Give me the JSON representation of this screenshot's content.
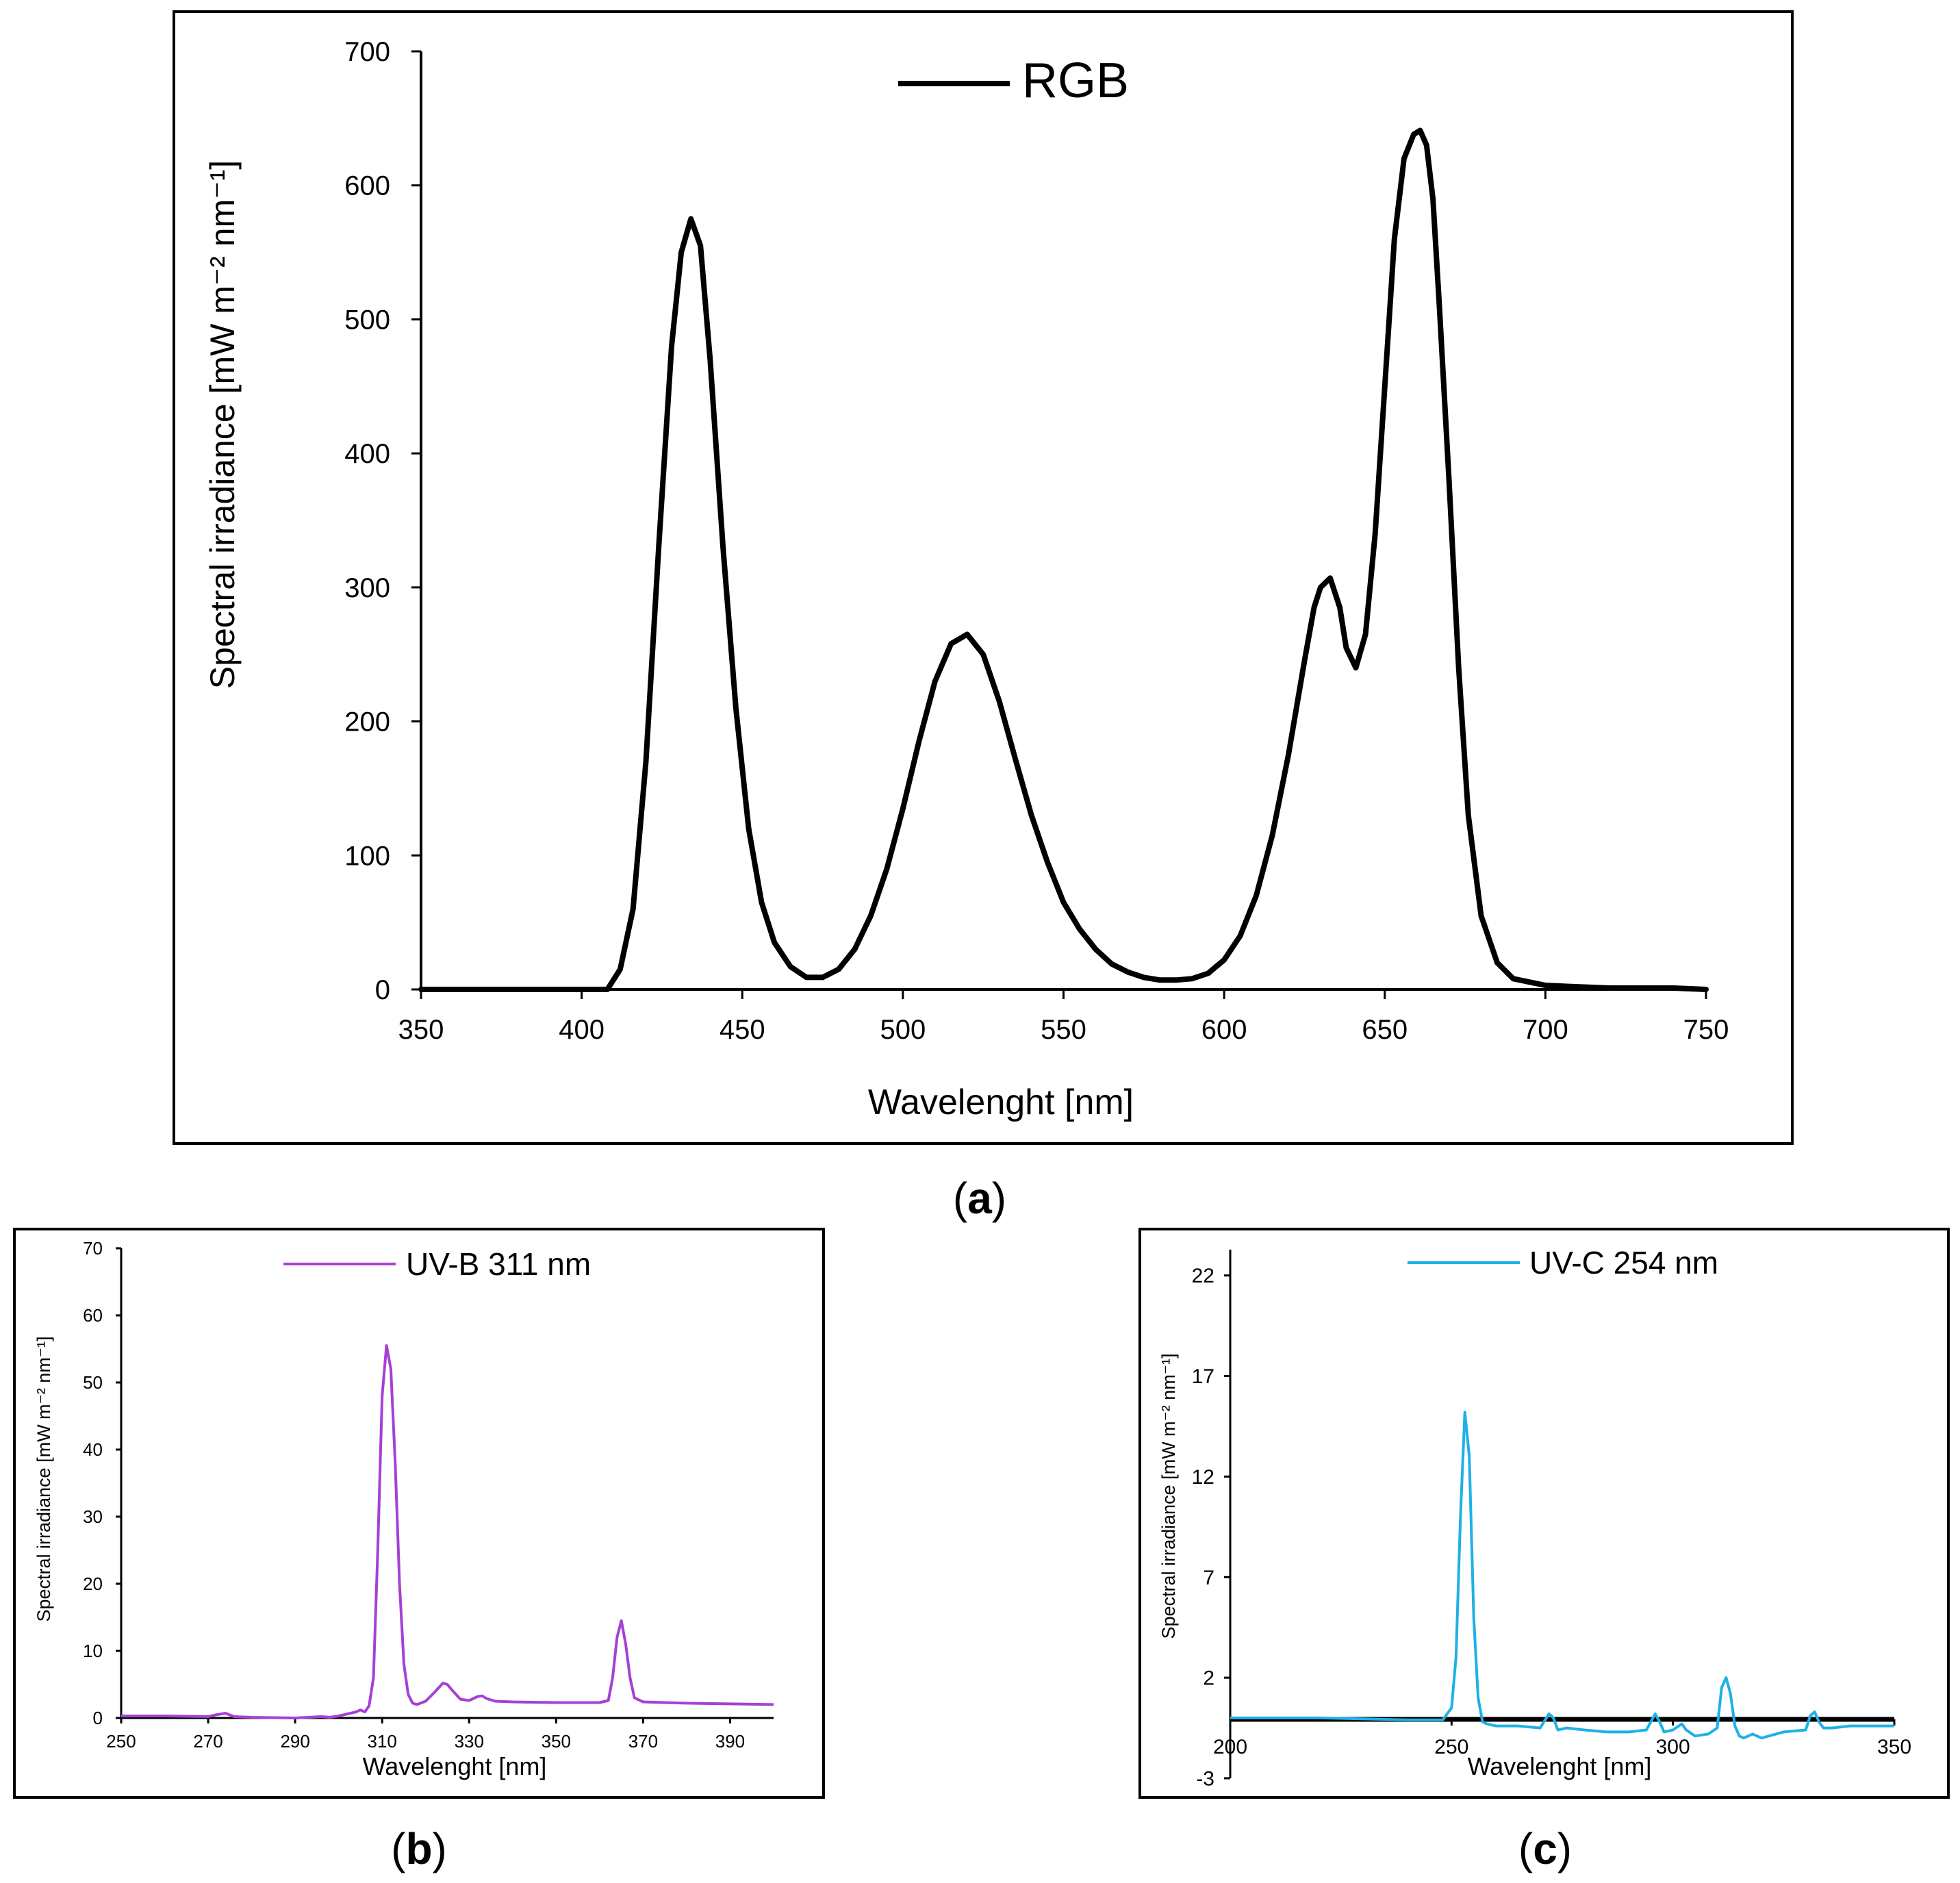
{
  "figure": {
    "panels": [
      {
        "caption_letter": "a"
      },
      {
        "caption_letter": "b"
      },
      {
        "caption_letter": "c"
      }
    ]
  },
  "chart_data": [
    {
      "type": "line",
      "panel": "a",
      "title": "",
      "xlabel": "Wavelenght [nm]",
      "ylabel": "Spectral irradiance [mW m⁻² nm⁻¹]",
      "xlim": [
        350,
        750
      ],
      "ylim": [
        0,
        700
      ],
      "xticks": [
        350,
        400,
        450,
        500,
        550,
        600,
        650,
        700,
        750
      ],
      "yticks": [
        0,
        100,
        200,
        300,
        400,
        500,
        600,
        700
      ],
      "legend": {
        "position": "top-center"
      },
      "grid": false,
      "series": [
        {
          "name": "RGB",
          "color": "#000000",
          "x": [
            350,
            400,
            405,
            408,
            412,
            416,
            420,
            424,
            428,
            431,
            434,
            437,
            440,
            444,
            448,
            452,
            456,
            460,
            465,
            470,
            475,
            480,
            485,
            490,
            495,
            500,
            505,
            510,
            515,
            520,
            525,
            530,
            535,
            540,
            545,
            550,
            555,
            560,
            565,
            570,
            575,
            580,
            585,
            590,
            595,
            600,
            605,
            610,
            615,
            620,
            625,
            628,
            630,
            633,
            636,
            638,
            641,
            644,
            647,
            650,
            653,
            656,
            659,
            661,
            663,
            665,
            667,
            670,
            673,
            676,
            680,
            685,
            690,
            700,
            710,
            720,
            730,
            740,
            750
          ],
          "values": [
            0,
            0,
            0,
            0,
            15,
            60,
            170,
            330,
            480,
            550,
            575,
            555,
            470,
            330,
            210,
            120,
            65,
            35,
            17,
            9,
            9,
            15,
            30,
            55,
            90,
            135,
            185,
            230,
            258,
            265,
            250,
            215,
            172,
            130,
            95,
            65,
            45,
            30,
            19,
            13,
            9,
            7,
            7,
            8,
            12,
            22,
            40,
            70,
            115,
            175,
            245,
            285,
            300,
            307,
            285,
            255,
            240,
            265,
            340,
            450,
            560,
            620,
            638,
            641,
            630,
            590,
            510,
            380,
            240,
            130,
            55,
            20,
            8,
            3,
            2,
            1,
            1,
            1,
            0
          ]
        }
      ]
    },
    {
      "type": "line",
      "panel": "b",
      "title": "",
      "xlabel": "Wavelenght [nm]",
      "ylabel": "Spectral irradiance [mW m⁻² nm⁻¹]",
      "xlim": [
        250,
        400
      ],
      "ylim": [
        0,
        70
      ],
      "xticks": [
        250,
        270,
        290,
        310,
        330,
        350,
        370,
        390
      ],
      "yticks": [
        0,
        10,
        20,
        30,
        40,
        50,
        60,
        70
      ],
      "legend": {
        "position": "top-center"
      },
      "grid": false,
      "series": [
        {
          "name": "UV-B 311 nm",
          "color": "#a640d6",
          "x": [
            250,
            260,
            270,
            272,
            274,
            276,
            280,
            290,
            296,
            298,
            300,
            302,
            304,
            305,
            306,
            307,
            308,
            309,
            310,
            311,
            312,
            313,
            314,
            315,
            316,
            317,
            318,
            320,
            322,
            324,
            325,
            326,
            328,
            330,
            332,
            333,
            334,
            336,
            340,
            350,
            355,
            360,
            362,
            363,
            364,
            365,
            366,
            367,
            368,
            370,
            375,
            380,
            390,
            400
          ],
          "values": [
            0.3,
            0.3,
            0.2,
            0.5,
            0.7,
            0.2,
            0.1,
            0.0,
            0.2,
            0.1,
            0.3,
            0.6,
            0.9,
            1.2,
            0.9,
            1.8,
            6,
            25,
            48,
            55.5,
            52,
            38,
            20,
            8,
            3.5,
            2.2,
            2.0,
            2.5,
            3.8,
            5.2,
            5.0,
            4.2,
            2.8,
            2.6,
            3.2,
            3.3,
            2.9,
            2.5,
            2.4,
            2.3,
            2.3,
            2.3,
            2.6,
            6,
            12,
            14.5,
            11,
            6,
            3,
            2.4,
            2.3,
            2.2,
            2.1,
            2.0
          ]
        }
      ]
    },
    {
      "type": "line",
      "panel": "c",
      "title": "",
      "xlabel": "Wavelenght [nm]",
      "ylabel": "Spectral irradiance [mW m⁻² nm⁻¹]",
      "xlim": [
        200,
        350
      ],
      "ylim": [
        -3,
        24
      ],
      "xticks": [
        200,
        250,
        300,
        350
      ],
      "yticks": [
        -3,
        2,
        7,
        12,
        17,
        22
      ],
      "legend": {
        "position": "top-center"
      },
      "grid": false,
      "series": [
        {
          "name": "UV-C 254 nm",
          "color": "#1fb0e6",
          "x": [
            200,
            220,
            240,
            248,
            250,
            251,
            252,
            253,
            254,
            255,
            256,
            257,
            258,
            260,
            265,
            270,
            272,
            273,
            274,
            276,
            280,
            285,
            290,
            294,
            296,
            297,
            298,
            300,
            302,
            303,
            305,
            308,
            310,
            311,
            312,
            313,
            314,
            315,
            316,
            318,
            320,
            325,
            330,
            331,
            332,
            333,
            334,
            336,
            340,
            345,
            350
          ],
          "values": [
            0,
            0,
            -0.1,
            -0.1,
            0.5,
            3,
            10,
            15.2,
            13,
            5,
            1,
            -0.2,
            -0.3,
            -0.4,
            -0.4,
            -0.5,
            0.2,
            0.0,
            -0.6,
            -0.5,
            -0.6,
            -0.7,
            -0.7,
            -0.6,
            0.2,
            -0.2,
            -0.7,
            -0.6,
            -0.3,
            -0.6,
            -0.9,
            -0.8,
            -0.5,
            1.5,
            2.0,
            1.2,
            -0.4,
            -0.9,
            -1.0,
            -0.8,
            -1.0,
            -0.7,
            -0.6,
            0.1,
            0.3,
            -0.2,
            -0.5,
            -0.5,
            -0.4,
            -0.4,
            -0.4
          ]
        }
      ]
    }
  ]
}
